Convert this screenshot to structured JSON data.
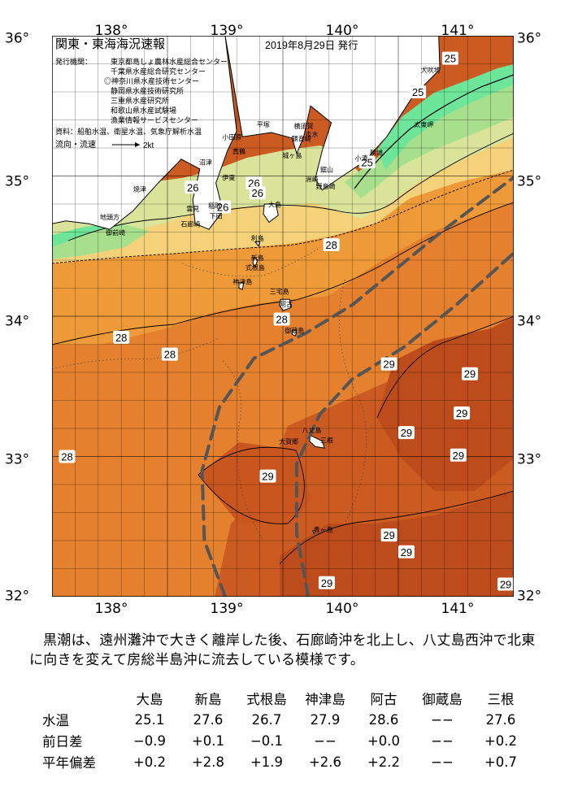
{
  "header": {
    "title": "関東・東海海況速報",
    "issued": "2019年8月29日 発行",
    "agencies_label": "発行機関：",
    "agencies": [
      "東京都島しょ農林水産総合センター",
      "千葉県水産総合研究センター",
      "◎神奈川県水産技術センター",
      "静岡県水産技術研究所",
      "三重県水産研究所",
      "和歌山県水産試験場",
      "漁業情報サービスセンター"
    ],
    "sources": "資料：船舶水温、衛星水温、気象庁解析水温",
    "current_legend": "流向・流速",
    "current_scale": "2kt"
  },
  "axes": {
    "longitude_ticks": [
      "138°",
      "139°",
      "140°",
      "141°"
    ],
    "latitude_ticks": [
      "36°",
      "35°",
      "34°",
      "33°",
      "32°"
    ]
  },
  "map": {
    "extent": {
      "lon_min": 137.5,
      "lon_max": 141.5,
      "lat_min": 32,
      "lat_max": 36
    },
    "colors": {
      "sst_24": "#6ee69a",
      "sst_25": "#a8df8c",
      "sst_26": "#d9e49a",
      "sst_27": "#f5d27a",
      "sst_28": "#ef9a38",
      "sst_28_5": "#e4802e",
      "sst_29": "#cc5b22",
      "sst_29_5": "#bd4c1c",
      "land": "#ffffff",
      "kuroshio": "#555555"
    },
    "isotherm_labels": [
      {
        "text": "25",
        "lon": 140.95,
        "lat": 35.84
      },
      {
        "text": "25",
        "lon": 140.67,
        "lat": 35.6
      },
      {
        "text": "25",
        "lon": 140.23,
        "lat": 35.1
      },
      {
        "text": "26",
        "lon": 138.72,
        "lat": 34.92
      },
      {
        "text": "26",
        "lon": 139.25,
        "lat": 34.95
      },
      {
        "text": "26",
        "lon": 139.28,
        "lat": 34.88
      },
      {
        "text": "26",
        "lon": 138.98,
        "lat": 34.78
      },
      {
        "text": "28",
        "lon": 139.92,
        "lat": 34.51
      },
      {
        "text": "28",
        "lon": 139.49,
        "lat": 33.98
      },
      {
        "text": "28",
        "lon": 138.1,
        "lat": 33.85
      },
      {
        "text": "28",
        "lon": 137.63,
        "lat": 33.0
      },
      {
        "text": "28",
        "lon": 138.52,
        "lat": 33.73
      },
      {
        "text": "29",
        "lon": 140.42,
        "lat": 33.66
      },
      {
        "text": "29",
        "lon": 141.12,
        "lat": 33.59
      },
      {
        "text": "29",
        "lon": 141.05,
        "lat": 33.31
      },
      {
        "text": "29",
        "lon": 140.57,
        "lat": 33.17
      },
      {
        "text": "29",
        "lon": 141.02,
        "lat": 33.01
      },
      {
        "text": "29",
        "lon": 139.37,
        "lat": 32.86
      },
      {
        "text": "29",
        "lon": 140.42,
        "lat": 32.44
      },
      {
        "text": "29",
        "lon": 140.57,
        "lat": 32.32
      },
      {
        "text": "29",
        "lon": 139.88,
        "lat": 32.1
      },
      {
        "text": "29",
        "lon": 141.43,
        "lat": 32.09
      }
    ],
    "place_names": [
      {
        "text": "犬吠埼",
        "lon": 140.78,
        "lat": 35.74
      },
      {
        "text": "太東岬",
        "lon": 140.72,
        "lat": 35.35
      },
      {
        "text": "勝浦",
        "lon": 140.31,
        "lat": 35.15
      },
      {
        "text": "小湊",
        "lon": 140.18,
        "lat": 35.11
      },
      {
        "text": "鋸山",
        "lon": 139.88,
        "lat": 35.03
      },
      {
        "text": "野島崎",
        "lon": 139.87,
        "lat": 34.91
      },
      {
        "text": "洲崎",
        "lon": 139.75,
        "lat": 34.96
      },
      {
        "text": "走水",
        "lon": 139.75,
        "lat": 35.28
      },
      {
        "text": "城ヶ島",
        "lon": 139.58,
        "lat": 35.13
      },
      {
        "text": "観音崎",
        "lon": 139.66,
        "lat": 35.25
      },
      {
        "text": "横須賀",
        "lon": 139.68,
        "lat": 35.34
      },
      {
        "text": "平塚",
        "lon": 139.33,
        "lat": 35.35
      },
      {
        "text": "小田原",
        "lon": 139.06,
        "lat": 35.26
      },
      {
        "text": "真鶴",
        "lon": 139.12,
        "lat": 35.16
      },
      {
        "text": "伊東",
        "lon": 139.03,
        "lat": 34.97
      },
      {
        "text": "沼津",
        "lon": 138.83,
        "lat": 35.08
      },
      {
        "text": "焼津",
        "lon": 138.26,
        "lat": 34.89
      },
      {
        "text": "稲取",
        "lon": 138.91,
        "lat": 34.77
      },
      {
        "text": "下田",
        "lon": 138.92,
        "lat": 34.7
      },
      {
        "text": "雲見",
        "lon": 138.72,
        "lat": 34.75
      },
      {
        "text": "石廊崎",
        "lon": 138.7,
        "lat": 34.64
      },
      {
        "text": "御前崎",
        "lon": 138.05,
        "lat": 34.58
      },
      {
        "text": "地頭方",
        "lon": 138.0,
        "lat": 34.69
      },
      {
        "text": "大島",
        "lon": 139.43,
        "lat": 34.78
      },
      {
        "text": "利島",
        "lon": 139.28,
        "lat": 34.54
      },
      {
        "text": "新島",
        "lon": 139.28,
        "lat": 34.4
      },
      {
        "text": "式根島",
        "lon": 139.26,
        "lat": 34.33
      },
      {
        "text": "神津島",
        "lon": 139.15,
        "lat": 34.23
      },
      {
        "text": "三宅島",
        "lon": 139.47,
        "lat": 34.16
      },
      {
        "text": "阿古",
        "lon": 139.53,
        "lat": 34.07
      },
      {
        "text": "御蔵島",
        "lon": 139.6,
        "lat": 33.88
      },
      {
        "text": "八丈島",
        "lon": 139.75,
        "lat": 33.17
      },
      {
        "text": "三根",
        "lon": 139.88,
        "lat": 33.1
      },
      {
        "text": "大賀郷",
        "lon": 139.55,
        "lat": 33.09
      },
      {
        "text": "青ヶ島",
        "lon": 139.85,
        "lat": 32.46
      }
    ]
  },
  "description": "黒潮は、遠州灘沖で大きく離岸した後、石廊崎沖を北上し、八丈島西沖で北東に向きを変えて房総半島沖に流去している模様です。",
  "observations": {
    "columns": [
      "大島",
      "新島",
      "式根島",
      "神津島",
      "阿古",
      "御蔵島",
      "三根"
    ],
    "rows": [
      {
        "label": "水温",
        "values": [
          "25.1",
          "27.6",
          "26.7",
          "27.9",
          "28.6",
          "−−",
          "27.6"
        ]
      },
      {
        "label": "前日差",
        "values": [
          "−0.9",
          "+0.1",
          "−0.1",
          "−−",
          "+0.0",
          "−−",
          "+0.2"
        ]
      },
      {
        "label": "平年偏差",
        "values": [
          "+0.2",
          "+2.8",
          "+1.9",
          "+2.6",
          "+2.2",
          "−−",
          "+0.7"
        ]
      }
    ]
  }
}
